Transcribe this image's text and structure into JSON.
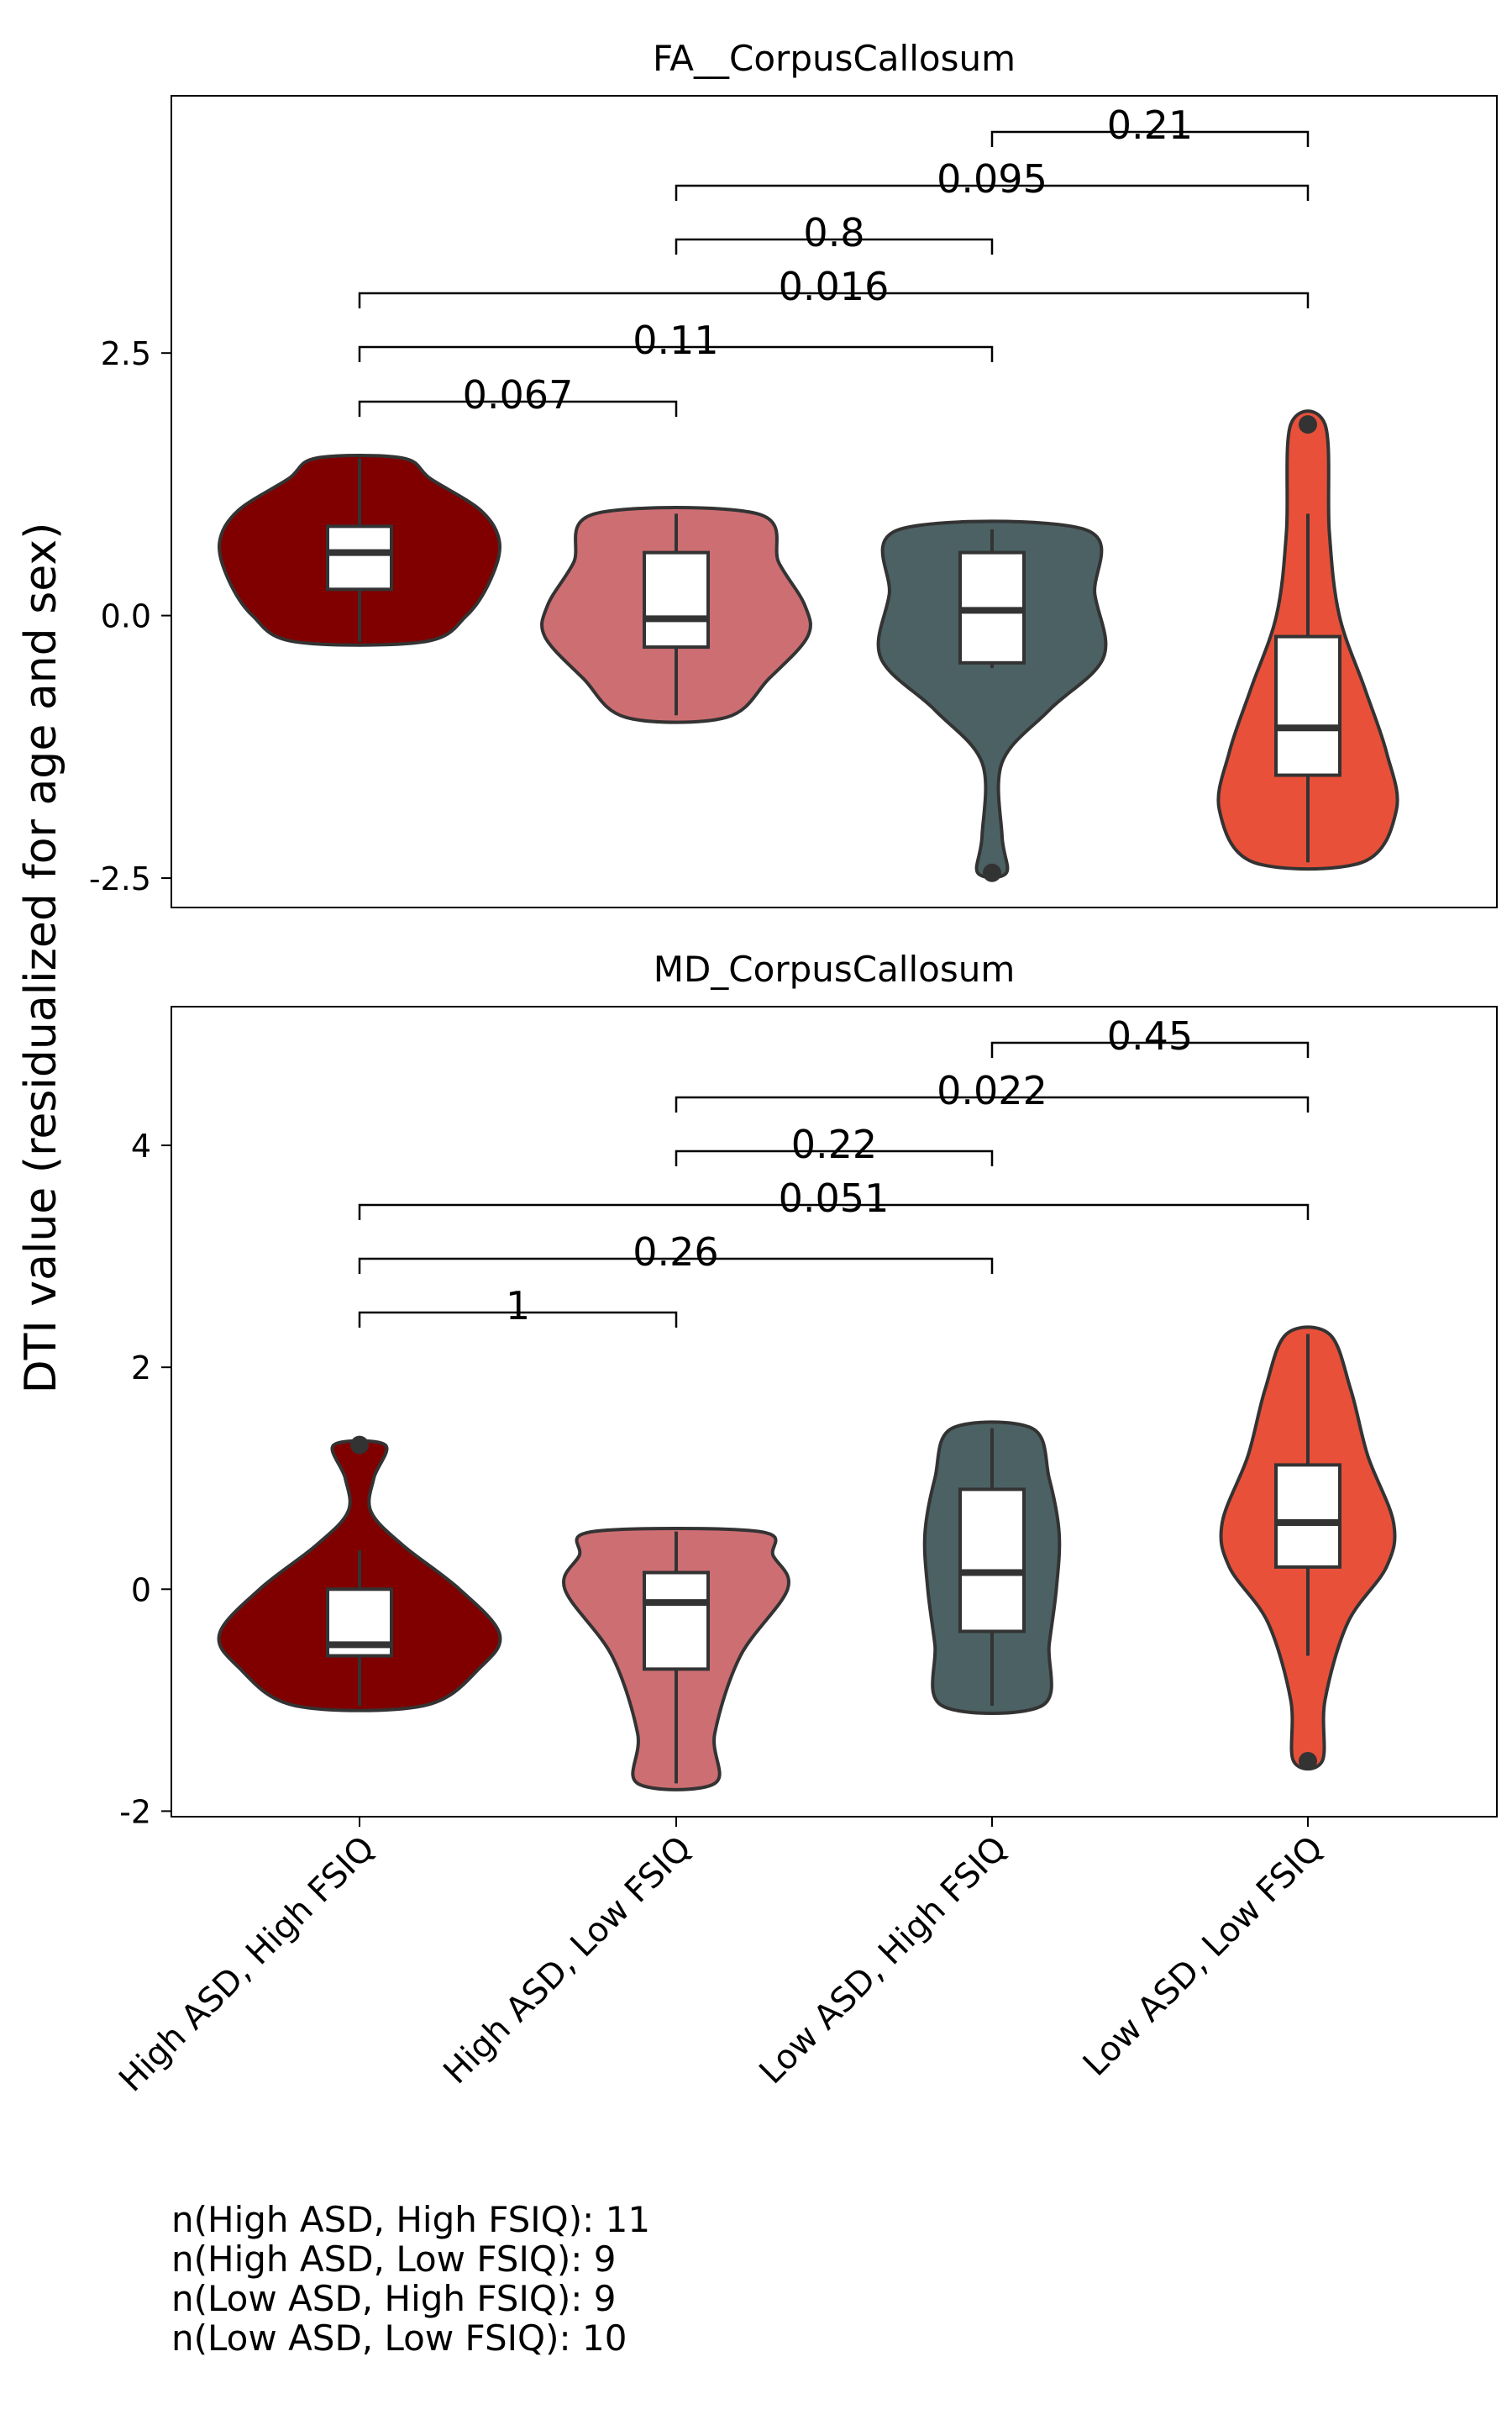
{
  "chart_data": [
    {
      "type": "violin",
      "title": "FA__CorpusCallosum",
      "ylabel": "DTI value (residualized for age and sex)",
      "xlabel": "",
      "categories": [
        "High ASD, High FSIQ",
        "High ASD, Low FSIQ",
        "Low ASD, High FSIQ",
        "Low ASD, Low FSIQ"
      ],
      "colors": [
        "#800000",
        "#cd6e73",
        "#4c6163",
        "#e8503a"
      ],
      "ylim": [
        -2.78,
        4.95
      ],
      "yticks": [
        2.5,
        0.0,
        -2.5
      ],
      "ytick_labels": [
        "2.5",
        "0.0",
        "-2.5"
      ],
      "grid": false,
      "box": [
        {
          "whisker_low": -0.25,
          "q1": 0.25,
          "median": 0.6,
          "q3": 0.85,
          "whisker_high": 1.5
        },
        {
          "whisker_low": -0.95,
          "q1": -0.3,
          "median": -0.03,
          "q3": 0.6,
          "whisker_high": 0.97
        },
        {
          "whisker_low": -0.5,
          "q1": -0.45,
          "median": 0.05,
          "q3": 0.6,
          "whisker_high": 0.82
        },
        {
          "whisker_low": -2.35,
          "q1": -1.52,
          "median": -1.07,
          "q3": -0.2,
          "whisker_high": 0.97
        }
      ],
      "outliers": [
        {
          "group": 2,
          "value": -2.45
        },
        {
          "group": 3,
          "value": 1.82
        }
      ],
      "violin_extent": [
        [
          -0.25,
          1.5
        ],
        [
          -0.97,
          0.97
        ],
        [
          -2.45,
          0.82
        ],
        [
          -2.35,
          1.82
        ]
      ],
      "violin_profile": [
        [
          [
            -0.25,
            0.45
          ],
          [
            0.0,
            0.75
          ],
          [
            0.35,
            0.92
          ],
          [
            0.7,
            0.98
          ],
          [
            1.0,
            0.85
          ],
          [
            1.3,
            0.5
          ],
          [
            1.5,
            0.3
          ]
        ],
        [
          [
            -0.97,
            0.35
          ],
          [
            -0.6,
            0.65
          ],
          [
            -0.2,
            0.92
          ],
          [
            0.1,
            0.9
          ],
          [
            0.5,
            0.72
          ],
          [
            0.97,
            0.57
          ]
        ],
        [
          [
            -2.45,
            0.1
          ],
          [
            -2.1,
            0.07
          ],
          [
            -1.4,
            0.07
          ],
          [
            -0.9,
            0.4
          ],
          [
            -0.4,
            0.78
          ],
          [
            0.2,
            0.72
          ],
          [
            0.82,
            0.65
          ]
        ],
        [
          [
            -2.35,
            0.38
          ],
          [
            -1.85,
            0.62
          ],
          [
            -1.3,
            0.55
          ],
          [
            -0.7,
            0.4
          ],
          [
            0.0,
            0.22
          ],
          [
            0.8,
            0.15
          ],
          [
            1.82,
            0.12
          ]
        ]
      ],
      "comparisons": [
        {
          "from": 0,
          "to": 1,
          "label": "0.067"
        },
        {
          "from": 0,
          "to": 2,
          "label": "0.11"
        },
        {
          "from": 0,
          "to": 3,
          "label": "0.016"
        },
        {
          "from": 1,
          "to": 2,
          "label": "0.8"
        },
        {
          "from": 1,
          "to": 3,
          "label": "0.095"
        },
        {
          "from": 2,
          "to": 3,
          "label": "0.21"
        }
      ]
    },
    {
      "type": "violin",
      "title": "MD_CorpusCallosum",
      "xlabel": "",
      "categories": [
        "High ASD, High FSIQ",
        "High ASD, Low FSIQ",
        "Low ASD, High FSIQ",
        "Low ASD, Low FSIQ"
      ],
      "colors": [
        "#800000",
        "#cd6e73",
        "#4c6163",
        "#e8503a"
      ],
      "ylim": [
        -2.05,
        5.25
      ],
      "yticks": [
        4,
        2,
        0,
        -2
      ],
      "ytick_labels": [
        "4",
        "2",
        "0",
        "-2"
      ],
      "grid": false,
      "box": [
        {
          "whisker_low": -1.05,
          "q1": -0.6,
          "median": -0.5,
          "q3": 0.0,
          "whisker_high": 0.35
        },
        {
          "whisker_low": -1.75,
          "q1": -0.72,
          "median": -0.12,
          "q3": 0.15,
          "whisker_high": 0.52
        },
        {
          "whisker_low": -1.05,
          "q1": -0.38,
          "median": 0.15,
          "q3": 0.9,
          "whisker_high": 1.45
        },
        {
          "whisker_low": -0.6,
          "q1": 0.2,
          "median": 0.6,
          "q3": 1.12,
          "whisker_high": 2.3
        }
      ],
      "outliers": [
        {
          "group": 0,
          "value": 1.3
        },
        {
          "group": 3,
          "value": -1.55
        }
      ],
      "violin_extent": [
        [
          -1.05,
          1.3
        ],
        [
          -1.75,
          0.52
        ],
        [
          -1.05,
          1.45
        ],
        [
          -1.55,
          2.3
        ]
      ],
      "violin_profile": [
        [
          [
            -1.05,
            0.45
          ],
          [
            -0.7,
            0.85
          ],
          [
            -0.4,
            0.98
          ],
          [
            0.0,
            0.7
          ],
          [
            0.4,
            0.3
          ],
          [
            0.7,
            0.08
          ],
          [
            1.0,
            0.1
          ],
          [
            1.3,
            0.18
          ]
        ],
        [
          [
            -1.75,
            0.27
          ],
          [
            -1.3,
            0.27
          ],
          [
            -0.6,
            0.45
          ],
          [
            0.0,
            0.78
          ],
          [
            0.3,
            0.68
          ],
          [
            0.52,
            0.58
          ]
        ],
        [
          [
            -1.05,
            0.35
          ],
          [
            -0.5,
            0.4
          ],
          [
            0.0,
            0.45
          ],
          [
            0.5,
            0.47
          ],
          [
            1.0,
            0.4
          ],
          [
            1.45,
            0.28
          ]
        ],
        [
          [
            -1.55,
            0.1
          ],
          [
            -1.0,
            0.12
          ],
          [
            -0.3,
            0.28
          ],
          [
            0.2,
            0.55
          ],
          [
            0.6,
            0.6
          ],
          [
            1.2,
            0.42
          ],
          [
            1.8,
            0.3
          ],
          [
            2.3,
            0.15
          ]
        ]
      ],
      "comparisons": [
        {
          "from": 0,
          "to": 1,
          "label": "1"
        },
        {
          "from": 0,
          "to": 2,
          "label": "0.26"
        },
        {
          "from": 0,
          "to": 3,
          "label": "0.051"
        },
        {
          "from": 1,
          "to": 2,
          "label": "0.22"
        },
        {
          "from": 1,
          "to": 3,
          "label": "0.022"
        },
        {
          "from": 2,
          "to": 3,
          "label": "0.45"
        }
      ]
    }
  ],
  "shared_ylabel": "DTI value (residualized for age and sex)",
  "x_tick_labels": [
    "High ASD, High FSIQ",
    "High ASD, Low FSIQ",
    "Low ASD, High FSIQ",
    "Low ASD, Low FSIQ"
  ],
  "footnote": [
    "n(High ASD, High FSIQ): 11",
    "n(High ASD, Low FSIQ): 9",
    "n(Low ASD, High FSIQ): 9",
    "n(Low ASD, Low FSIQ): 10"
  ]
}
